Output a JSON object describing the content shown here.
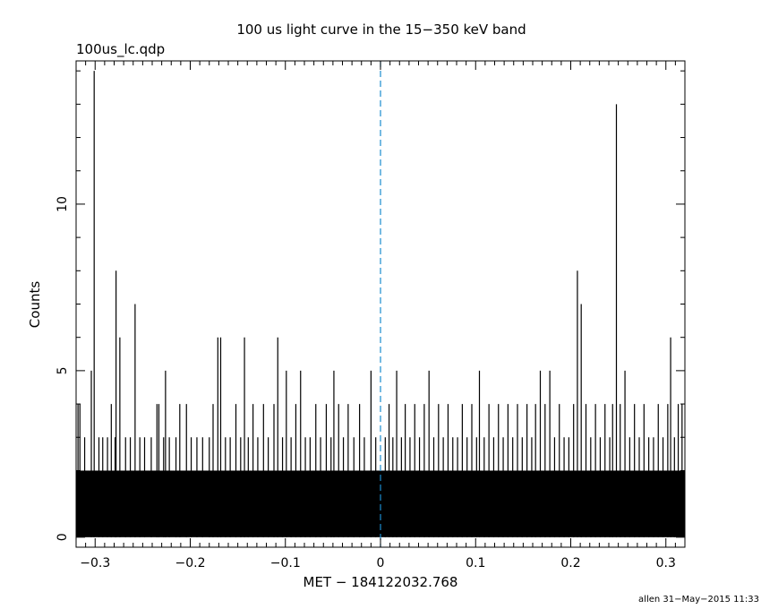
{
  "chart_data": {
    "type": "line",
    "title": "100 us light curve in the 15−350 keV band",
    "subtitle": "100us_lc.qdp",
    "xlabel": "MET − 184122032.768",
    "ylabel": "Counts",
    "footer": "allen 31−May−2015 11:33",
    "xlim": [
      -0.32,
      0.32
    ],
    "ylim": [
      -0.3,
      14.3
    ],
    "x_ticks": [
      -0.3,
      -0.2,
      -0.1,
      0,
      0.1,
      0.2,
      0.3
    ],
    "x_tick_labels": [
      "−0.3",
      "−0.2",
      "−0.1",
      "0",
      "0.1",
      "0.2",
      "0.3"
    ],
    "y_ticks": [
      0,
      5,
      10
    ],
    "y_tick_labels": [
      "0",
      "5",
      "10"
    ],
    "marker_line": {
      "x": 0,
      "color": "#1a8ccf",
      "style": "dashed"
    },
    "bin_width": 0.0001,
    "baseline_level": 2,
    "series": [
      {
        "style": "histogram",
        "color": "#000000",
        "peaks": [
          {
            "x": -0.318,
            "y": 4
          },
          {
            "x": -0.316,
            "y": 4
          },
          {
            "x": -0.311,
            "y": 3
          },
          {
            "x": -0.304,
            "y": 5
          },
          {
            "x": -0.301,
            "y": 14
          },
          {
            "x": -0.296,
            "y": 3
          },
          {
            "x": -0.292,
            "y": 3
          },
          {
            "x": -0.287,
            "y": 3
          },
          {
            "x": -0.283,
            "y": 4
          },
          {
            "x": -0.279,
            "y": 3
          },
          {
            "x": -0.278,
            "y": 8
          },
          {
            "x": -0.274,
            "y": 6
          },
          {
            "x": -0.268,
            "y": 3
          },
          {
            "x": -0.263,
            "y": 3
          },
          {
            "x": -0.258,
            "y": 7
          },
          {
            "x": -0.253,
            "y": 3
          },
          {
            "x": -0.248,
            "y": 3
          },
          {
            "x": -0.241,
            "y": 3
          },
          {
            "x": -0.235,
            "y": 4
          },
          {
            "x": -0.233,
            "y": 4
          },
          {
            "x": -0.228,
            "y": 3
          },
          {
            "x": -0.226,
            "y": 5
          },
          {
            "x": -0.222,
            "y": 3
          },
          {
            "x": -0.215,
            "y": 3
          },
          {
            "x": -0.211,
            "y": 4
          },
          {
            "x": -0.204,
            "y": 4
          },
          {
            "x": -0.199,
            "y": 3
          },
          {
            "x": -0.193,
            "y": 3
          },
          {
            "x": -0.187,
            "y": 3
          },
          {
            "x": -0.18,
            "y": 3
          },
          {
            "x": -0.176,
            "y": 4
          },
          {
            "x": -0.171,
            "y": 6
          },
          {
            "x": -0.168,
            "y": 6
          },
          {
            "x": -0.163,
            "y": 3
          },
          {
            "x": -0.158,
            "y": 3
          },
          {
            "x": -0.152,
            "y": 4
          },
          {
            "x": -0.147,
            "y": 3
          },
          {
            "x": -0.143,
            "y": 6
          },
          {
            "x": -0.139,
            "y": 3
          },
          {
            "x": -0.134,
            "y": 4
          },
          {
            "x": -0.129,
            "y": 3
          },
          {
            "x": -0.123,
            "y": 4
          },
          {
            "x": -0.118,
            "y": 3
          },
          {
            "x": -0.112,
            "y": 4
          },
          {
            "x": -0.108,
            "y": 6
          },
          {
            "x": -0.103,
            "y": 3
          },
          {
            "x": -0.099,
            "y": 5
          },
          {
            "x": -0.094,
            "y": 3
          },
          {
            "x": -0.089,
            "y": 4
          },
          {
            "x": -0.084,
            "y": 5
          },
          {
            "x": -0.079,
            "y": 3
          },
          {
            "x": -0.074,
            "y": 3
          },
          {
            "x": -0.068,
            "y": 4
          },
          {
            "x": -0.063,
            "y": 3
          },
          {
            "x": -0.057,
            "y": 4
          },
          {
            "x": -0.052,
            "y": 3
          },
          {
            "x": -0.049,
            "y": 5
          },
          {
            "x": -0.044,
            "y": 4
          },
          {
            "x": -0.039,
            "y": 3
          },
          {
            "x": -0.034,
            "y": 4
          },
          {
            "x": -0.028,
            "y": 3
          },
          {
            "x": -0.022,
            "y": 4
          },
          {
            "x": -0.017,
            "y": 3
          },
          {
            "x": -0.01,
            "y": 5
          },
          {
            "x": -0.005,
            "y": 3
          },
          {
            "x": 0.005,
            "y": 3
          },
          {
            "x": 0.009,
            "y": 4
          },
          {
            "x": 0.013,
            "y": 3
          },
          {
            "x": 0.017,
            "y": 5
          },
          {
            "x": 0.022,
            "y": 3
          },
          {
            "x": 0.026,
            "y": 4
          },
          {
            "x": 0.031,
            "y": 3
          },
          {
            "x": 0.036,
            "y": 4
          },
          {
            "x": 0.041,
            "y": 3
          },
          {
            "x": 0.046,
            "y": 4
          },
          {
            "x": 0.051,
            "y": 5
          },
          {
            "x": 0.056,
            "y": 3
          },
          {
            "x": 0.061,
            "y": 4
          },
          {
            "x": 0.066,
            "y": 3
          },
          {
            "x": 0.071,
            "y": 4
          },
          {
            "x": 0.076,
            "y": 3
          },
          {
            "x": 0.081,
            "y": 3
          },
          {
            "x": 0.086,
            "y": 4
          },
          {
            "x": 0.091,
            "y": 3
          },
          {
            "x": 0.096,
            "y": 4
          },
          {
            "x": 0.101,
            "y": 3
          },
          {
            "x": 0.104,
            "y": 5
          },
          {
            "x": 0.109,
            "y": 3
          },
          {
            "x": 0.114,
            "y": 4
          },
          {
            "x": 0.119,
            "y": 3
          },
          {
            "x": 0.124,
            "y": 4
          },
          {
            "x": 0.129,
            "y": 3
          },
          {
            "x": 0.134,
            "y": 4
          },
          {
            "x": 0.139,
            "y": 3
          },
          {
            "x": 0.144,
            "y": 4
          },
          {
            "x": 0.149,
            "y": 3
          },
          {
            "x": 0.154,
            "y": 4
          },
          {
            "x": 0.159,
            "y": 3
          },
          {
            "x": 0.163,
            "y": 4
          },
          {
            "x": 0.168,
            "y": 5
          },
          {
            "x": 0.173,
            "y": 4
          },
          {
            "x": 0.178,
            "y": 5
          },
          {
            "x": 0.183,
            "y": 3
          },
          {
            "x": 0.188,
            "y": 4
          },
          {
            "x": 0.193,
            "y": 3
          },
          {
            "x": 0.198,
            "y": 3
          },
          {
            "x": 0.203,
            "y": 4
          },
          {
            "x": 0.207,
            "y": 8
          },
          {
            "x": 0.211,
            "y": 7
          },
          {
            "x": 0.216,
            "y": 4
          },
          {
            "x": 0.221,
            "y": 3
          },
          {
            "x": 0.226,
            "y": 4
          },
          {
            "x": 0.231,
            "y": 3
          },
          {
            "x": 0.236,
            "y": 4
          },
          {
            "x": 0.241,
            "y": 3
          },
          {
            "x": 0.244,
            "y": 4
          },
          {
            "x": 0.248,
            "y": 13
          },
          {
            "x": 0.252,
            "y": 4
          },
          {
            "x": 0.257,
            "y": 5
          },
          {
            "x": 0.262,
            "y": 3
          },
          {
            "x": 0.267,
            "y": 4
          },
          {
            "x": 0.272,
            "y": 3
          },
          {
            "x": 0.277,
            "y": 4
          },
          {
            "x": 0.282,
            "y": 3
          },
          {
            "x": 0.287,
            "y": 3
          },
          {
            "x": 0.292,
            "y": 4
          },
          {
            "x": 0.297,
            "y": 3
          },
          {
            "x": 0.302,
            "y": 4
          },
          {
            "x": 0.305,
            "y": 6
          },
          {
            "x": 0.309,
            "y": 3
          },
          {
            "x": 0.313,
            "y": 4
          },
          {
            "x": 0.317,
            "y": 4
          }
        ]
      }
    ],
    "grid": false
  }
}
